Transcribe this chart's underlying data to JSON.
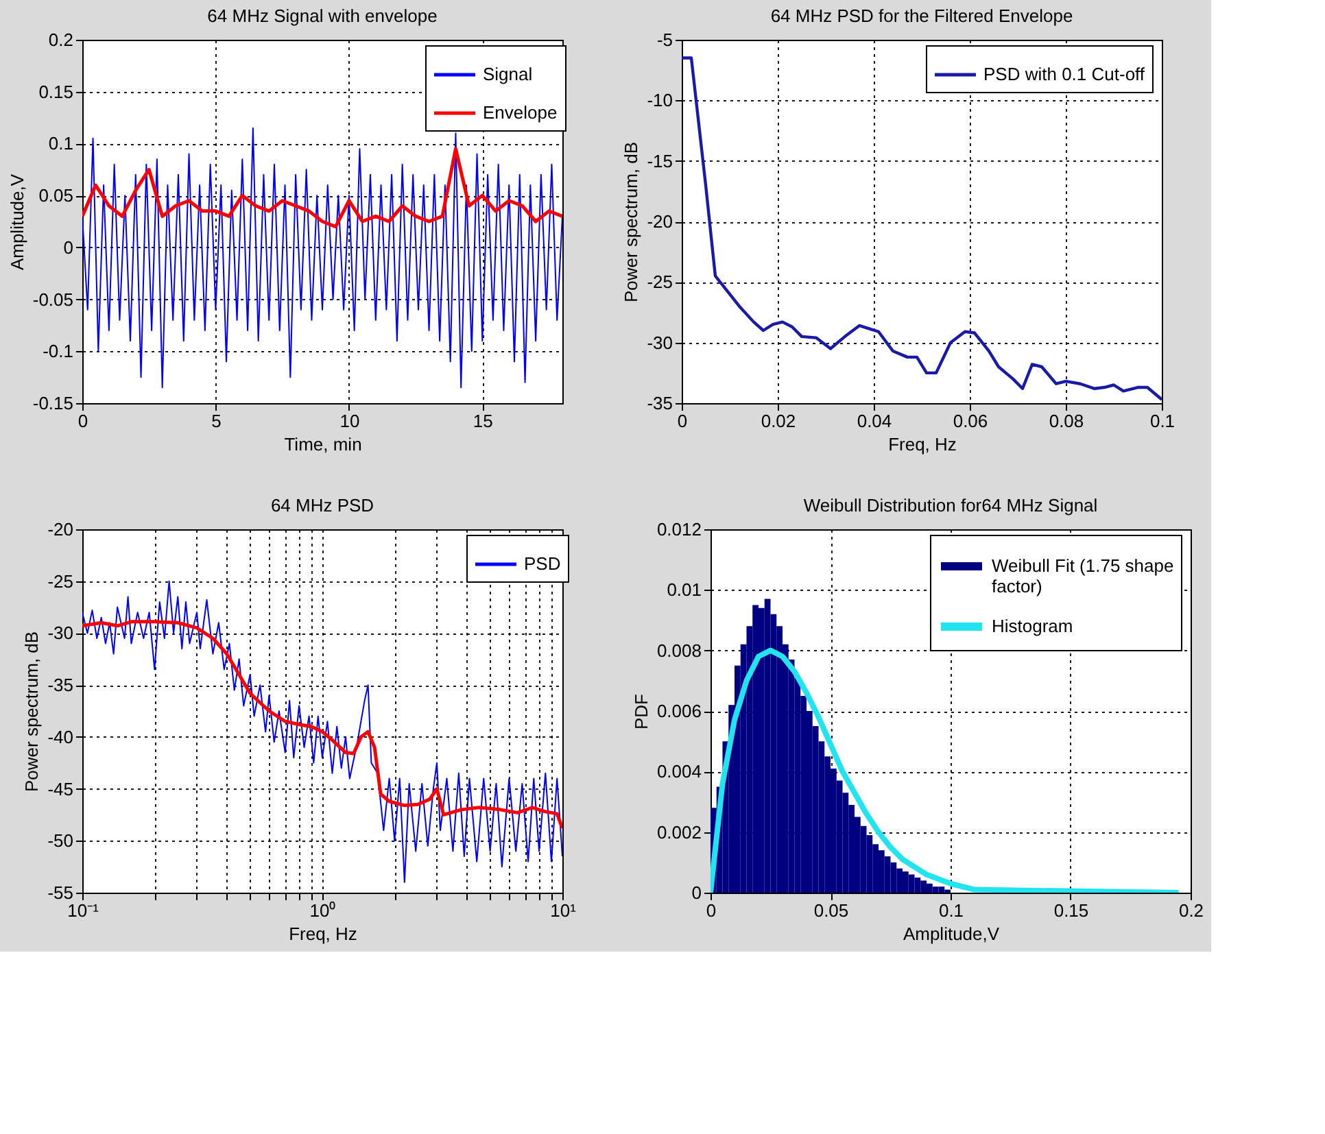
{
  "chart_data": [
    {
      "type": "line",
      "title": "64 MHz Signal with envelope",
      "xlabel": "Time, min",
      "ylabel": "Amplitude,V",
      "xlim": [
        0,
        18
      ],
      "xticks": [
        0,
        5,
        10,
        15
      ],
      "ylim": [
        -0.15,
        0.2
      ],
      "yticks": [
        -0.15,
        -0.1,
        -0.05,
        0,
        0.05,
        0.1,
        0.15,
        0.2
      ],
      "grid": true,
      "legend": "top right",
      "series": [
        {
          "name": "Signal",
          "color": "#0000ff",
          "x": [
            0,
            0.2,
            0.4,
            0.6,
            0.8,
            1.0,
            1.2,
            1.4,
            1.6,
            1.8,
            2.0,
            2.2,
            2.4,
            2.6,
            2.8,
            3.0,
            3.2,
            3.4,
            3.6,
            3.8,
            4.0,
            4.2,
            4.4,
            4.6,
            4.8,
            5.0,
            5.2,
            5.4,
            5.6,
            5.8,
            6.0,
            6.2,
            6.4,
            6.6,
            6.8,
            7.0,
            7.2,
            7.4,
            7.6,
            7.8,
            8.0,
            8.2,
            8.4,
            8.6,
            8.8,
            9.0,
            9.2,
            9.4,
            9.6,
            9.8,
            10.0,
            10.2,
            10.4,
            10.6,
            10.8,
            11.0,
            11.2,
            11.4,
            11.6,
            11.8,
            12.0,
            12.2,
            12.4,
            12.6,
            12.8,
            13.0,
            13.2,
            13.4,
            13.6,
            13.8,
            14.0,
            14.2,
            14.4,
            14.6,
            14.8,
            15.0,
            15.2,
            15.4,
            15.6,
            15.8,
            16.0,
            16.2,
            16.4,
            16.6,
            16.8,
            17.0,
            17.2,
            17.4,
            17.6,
            17.8,
            18.0
          ],
          "values": [
            0.03,
            -0.06,
            0.105,
            -0.1,
            0.06,
            -0.08,
            0.08,
            -0.07,
            0.05,
            -0.09,
            0.07,
            -0.125,
            0.08,
            -0.08,
            0.085,
            -0.135,
            0.06,
            -0.07,
            0.07,
            -0.09,
            0.09,
            -0.07,
            0.06,
            -0.08,
            0.08,
            -0.06,
            0.06,
            -0.11,
            0.055,
            -0.07,
            0.085,
            -0.08,
            0.115,
            -0.09,
            0.07,
            -0.07,
            0.08,
            -0.08,
            0.06,
            -0.125,
            0.07,
            -0.06,
            0.075,
            -0.07,
            0.05,
            -0.06,
            0.06,
            -0.05,
            0.05,
            -0.06,
            0.05,
            -0.08,
            0.095,
            -0.05,
            0.07,
            -0.07,
            0.06,
            -0.06,
            0.07,
            -0.09,
            0.08,
            -0.07,
            0.07,
            -0.06,
            0.06,
            -0.08,
            0.07,
            -0.09,
            0.06,
            -0.11,
            0.11,
            -0.135,
            0.06,
            -0.1,
            0.09,
            -0.09,
            0.07,
            -0.07,
            0.08,
            -0.08,
            0.06,
            -0.11,
            0.07,
            -0.13,
            0.06,
            -0.09,
            0.07,
            -0.06,
            0.08,
            -0.07,
            0.03
          ]
        },
        {
          "name": "Envelope",
          "color": "#ff0000",
          "x": [
            0,
            0.5,
            1.0,
            1.5,
            2.0,
            2.5,
            3.0,
            3.5,
            4.0,
            4.5,
            5.0,
            5.5,
            6.0,
            6.5,
            7.0,
            7.5,
            8.0,
            8.5,
            9.0,
            9.5,
            10.0,
            10.5,
            11.0,
            11.5,
            12.0,
            12.5,
            13.0,
            13.5,
            14.0,
            14.5,
            15.0,
            15.5,
            16.0,
            16.5,
            17.0,
            17.5,
            18.0
          ],
          "values": [
            0.03,
            0.06,
            0.04,
            0.03,
            0.055,
            0.075,
            0.03,
            0.04,
            0.045,
            0.035,
            0.035,
            0.03,
            0.05,
            0.04,
            0.035,
            0.045,
            0.04,
            0.035,
            0.025,
            0.02,
            0.045,
            0.025,
            0.03,
            0.025,
            0.04,
            0.03,
            0.025,
            0.03,
            0.095,
            0.04,
            0.05,
            0.035,
            0.045,
            0.04,
            0.025,
            0.035,
            0.03
          ]
        }
      ]
    },
    {
      "type": "line",
      "title": "64 MHz PSD for the Filtered Envelope",
      "xlabel": "Freq, Hz",
      "ylabel": "Power spectrum, dB",
      "xlim": [
        0,
        0.1
      ],
      "xticks": [
        0,
        0.02,
        0.04,
        0.06,
        0.08,
        0.1
      ],
      "ylim": [
        -35,
        -5
      ],
      "yticks": [
        -35,
        -30,
        -25,
        -20,
        -15,
        -10,
        -5
      ],
      "grid": true,
      "legend": "top right",
      "series": [
        {
          "name": "PSD with 0.1 Cut-off",
          "color": "#1a1aa8",
          "x": [
            0,
            0.002,
            0.003,
            0.005,
            0.007,
            0.009,
            0.012,
            0.015,
            0.017,
            0.019,
            0.021,
            0.023,
            0.025,
            0.028,
            0.031,
            0.034,
            0.037,
            0.041,
            0.044,
            0.047,
            0.049,
            0.051,
            0.053,
            0.056,
            0.059,
            0.061,
            0.064,
            0.066,
            0.069,
            0.071,
            0.073,
            0.075,
            0.078,
            0.08,
            0.083,
            0.086,
            0.088,
            0.09,
            0.092,
            0.095,
            0.097,
            0.1
          ],
          "values": [
            -6.5,
            -6.5,
            -10,
            -17,
            -24.5,
            -25.5,
            -27,
            -28.3,
            -29,
            -28.5,
            -28.3,
            -28.7,
            -29.5,
            -29.6,
            -30.5,
            -29.5,
            -28.6,
            -29.1,
            -30.7,
            -31.2,
            -31.2,
            -32.5,
            -32.5,
            -30,
            -29.1,
            -29.2,
            -30.7,
            -32,
            -33,
            -33.8,
            -31.8,
            -32,
            -33.4,
            -33.2,
            -33.4,
            -33.8,
            -33.7,
            -33.5,
            -34,
            -33.7,
            -33.7,
            -34.7
          ]
        }
      ]
    },
    {
      "type": "line",
      "title": "64 MHz PSD",
      "xlabel": "Freq, Hz",
      "ylabel": "Power spectrum, dB",
      "log": "x",
      "xlim": [
        0.1,
        10
      ],
      "xticks": [
        {
          "value": 0.1,
          "label": "10⁻¹"
        },
        {
          "value": 0.2,
          "label": null
        },
        {
          "value": 0.3,
          "label": null
        },
        {
          "value": 0.4,
          "label": null
        },
        {
          "value": 0.5,
          "label": null
        },
        {
          "value": 0.6,
          "label": null
        },
        {
          "value": 0.7,
          "label": null
        },
        {
          "value": 0.8,
          "label": null
        },
        {
          "value": 0.9,
          "label": null
        },
        {
          "value": 1,
          "label": "10⁰"
        },
        {
          "value": 2,
          "label": null
        },
        {
          "value": 3,
          "label": null
        },
        {
          "value": 4,
          "label": null
        },
        {
          "value": 5,
          "label": null
        },
        {
          "value": 6,
          "label": null
        },
        {
          "value": 7,
          "label": null
        },
        {
          "value": 8,
          "label": null
        },
        {
          "value": 9,
          "label": null
        },
        {
          "value": 10,
          "label": "10¹"
        }
      ],
      "ylim": [
        -55,
        -20
      ],
      "yticks": [
        -55,
        -50,
        -45,
        -40,
        -35,
        -30,
        -25,
        -20
      ],
      "grid": true,
      "legend": "top right",
      "series": [
        {
          "name": "PSD",
          "color": "#0000ff",
          "x": [
            0.1,
            0.105,
            0.11,
            0.115,
            0.12,
            0.125,
            0.13,
            0.135,
            0.14,
            0.15,
            0.155,
            0.16,
            0.17,
            0.18,
            0.19,
            0.2,
            0.21,
            0.22,
            0.23,
            0.24,
            0.25,
            0.26,
            0.27,
            0.28,
            0.3,
            0.31,
            0.33,
            0.35,
            0.37,
            0.39,
            0.41,
            0.43,
            0.45,
            0.47,
            0.5,
            0.52,
            0.55,
            0.58,
            0.6,
            0.63,
            0.66,
            0.7,
            0.73,
            0.76,
            0.8,
            0.84,
            0.88,
            0.92,
            0.96,
            1.0,
            1.05,
            1.1,
            1.15,
            1.2,
            1.25,
            1.3,
            1.4,
            1.5,
            1.55,
            1.6,
            1.7,
            1.8,
            1.9,
            2.0,
            2.1,
            2.2,
            2.3,
            2.45,
            2.6,
            2.75,
            2.9,
            3.0,
            3.1,
            3.3,
            3.5,
            3.7,
            3.9,
            4.1,
            4.4,
            4.7,
            5.0,
            5.3,
            5.6,
            6.0,
            6.4,
            6.8,
            7.2,
            7.6,
            8.0,
            8.5,
            9.0,
            9.5,
            10.0
          ],
          "values": [
            -28,
            -30,
            -27.8,
            -30.5,
            -28.5,
            -31,
            -29,
            -32,
            -27.5,
            -30.5,
            -26.5,
            -31,
            -28,
            -30.5,
            -28,
            -33.5,
            -27,
            -30.5,
            -25,
            -30,
            -26.5,
            -31.5,
            -27,
            -31,
            -28,
            -31.5,
            -26.8,
            -32,
            -29,
            -33.5,
            -31,
            -35.5,
            -32.5,
            -37,
            -34,
            -38,
            -35,
            -39.5,
            -36,
            -40.5,
            -37.5,
            -41.5,
            -36.5,
            -42,
            -37,
            -41,
            -38,
            -42.5,
            -38,
            -42,
            -38.5,
            -43.5,
            -39,
            -43,
            -40,
            -44,
            -40.5,
            -36.5,
            -35,
            -42.5,
            -43.5,
            -49,
            -44,
            -50,
            -44,
            -54,
            -44.5,
            -51,
            -44.5,
            -50.5,
            -45,
            -42.5,
            -49,
            -44,
            -51,
            -43.5,
            -51.5,
            -44,
            -52,
            -44,
            -51,
            -44.5,
            -52.5,
            -44,
            -51,
            -44.5,
            -52,
            -44,
            -51,
            -43.5,
            -52,
            -44,
            -51.5
          ]
        },
        {
          "color": "#ff0000",
          "x": [
            0.1,
            0.12,
            0.14,
            0.16,
            0.2,
            0.25,
            0.3,
            0.35,
            0.4,
            0.45,
            0.5,
            0.6,
            0.7,
            0.8,
            0.9,
            1.0,
            1.1,
            1.25,
            1.35,
            1.45,
            1.55,
            1.65,
            1.75,
            1.9,
            2.2,
            2.5,
            2.8,
            3.0,
            3.2,
            3.8,
            4.5,
            5.5,
            6.5,
            7.5,
            8.5,
            9.5,
            10.0
          ],
          "values": [
            -29.3,
            -29,
            -29.3,
            -28.9,
            -28.9,
            -29,
            -29.5,
            -30.5,
            -32,
            -34,
            -35.8,
            -37.5,
            -38.5,
            -38.8,
            -39,
            -39.5,
            -40.3,
            -41.5,
            -41.6,
            -40,
            -39.5,
            -41,
            -45.5,
            -46.2,
            -46.6,
            -46.5,
            -46,
            -45,
            -47.5,
            -47,
            -46.8,
            -47,
            -47.3,
            -46.8,
            -47.2,
            -47.4,
            -48.8
          ]
        }
      ]
    },
    {
      "type": "histogram",
      "title": "Weibull Distribution for64 MHz  Signal",
      "xlabel": "Amplitude,V",
      "ylabel": "PDF",
      "xlim": [
        0,
        0.2
      ],
      "xticks": [
        0,
        0.05,
        0.1,
        0.15,
        0.2
      ],
      "ylim": [
        0,
        0.012
      ],
      "yticks": [
        0,
        0.002,
        0.004,
        0.006,
        0.008,
        0.01,
        0.012
      ],
      "grid": true,
      "legend": "top right",
      "series": [
        {
          "name": "Weibull Fit (1.75 shape factor)",
          "color": "#000080",
          "bins": [
            0,
            0.0025,
            0.005,
            0.0075,
            0.01,
            0.0125,
            0.015,
            0.0175,
            0.02,
            0.0225,
            0.025,
            0.0275,
            0.03,
            0.0325,
            0.035,
            0.0375,
            0.04,
            0.0425,
            0.045,
            0.0475,
            0.05,
            0.0525,
            0.055,
            0.0575,
            0.06,
            0.0625,
            0.065,
            0.0675,
            0.07,
            0.0725,
            0.075,
            0.0775,
            0.08,
            0.0825,
            0.085,
            0.0875,
            0.09,
            0.0925,
            0.095,
            0.0975,
            0.1
          ],
          "values": [
            0.0028,
            0.0035,
            0.005,
            0.0062,
            0.0075,
            0.0082,
            0.0088,
            0.0095,
            0.0094,
            0.0097,
            0.0092,
            0.0088,
            0.0082,
            0.0077,
            0.0071,
            0.0065,
            0.006,
            0.0055,
            0.005,
            0.0045,
            0.0041,
            0.0037,
            0.0033,
            0.0029,
            0.0025,
            0.0022,
            0.0019,
            0.0016,
            0.0014,
            0.0012,
            0.001,
            0.0008,
            0.0007,
            0.0006,
            0.0005,
            0.0004,
            0.0003,
            0.0002,
            0.0002,
            0.0001
          ]
        },
        {
          "type": "line",
          "name": "Histogram",
          "color": "#22e4ee",
          "x": [
            0,
            0.005,
            0.01,
            0.015,
            0.02,
            0.025,
            0.03,
            0.035,
            0.04,
            0.045,
            0.05,
            0.055,
            0.06,
            0.065,
            0.07,
            0.075,
            0.08,
            0.09,
            0.1,
            0.11,
            0.195
          ],
          "values": [
            0,
            0.0036,
            0.0057,
            0.007,
            0.0078,
            0.008,
            0.0078,
            0.0073,
            0.0066,
            0.0058,
            0.0049,
            0.004,
            0.0033,
            0.0026,
            0.002,
            0.0015,
            0.0011,
            0.0006,
            0.0003,
            0.0001,
            0
          ]
        }
      ]
    }
  ]
}
